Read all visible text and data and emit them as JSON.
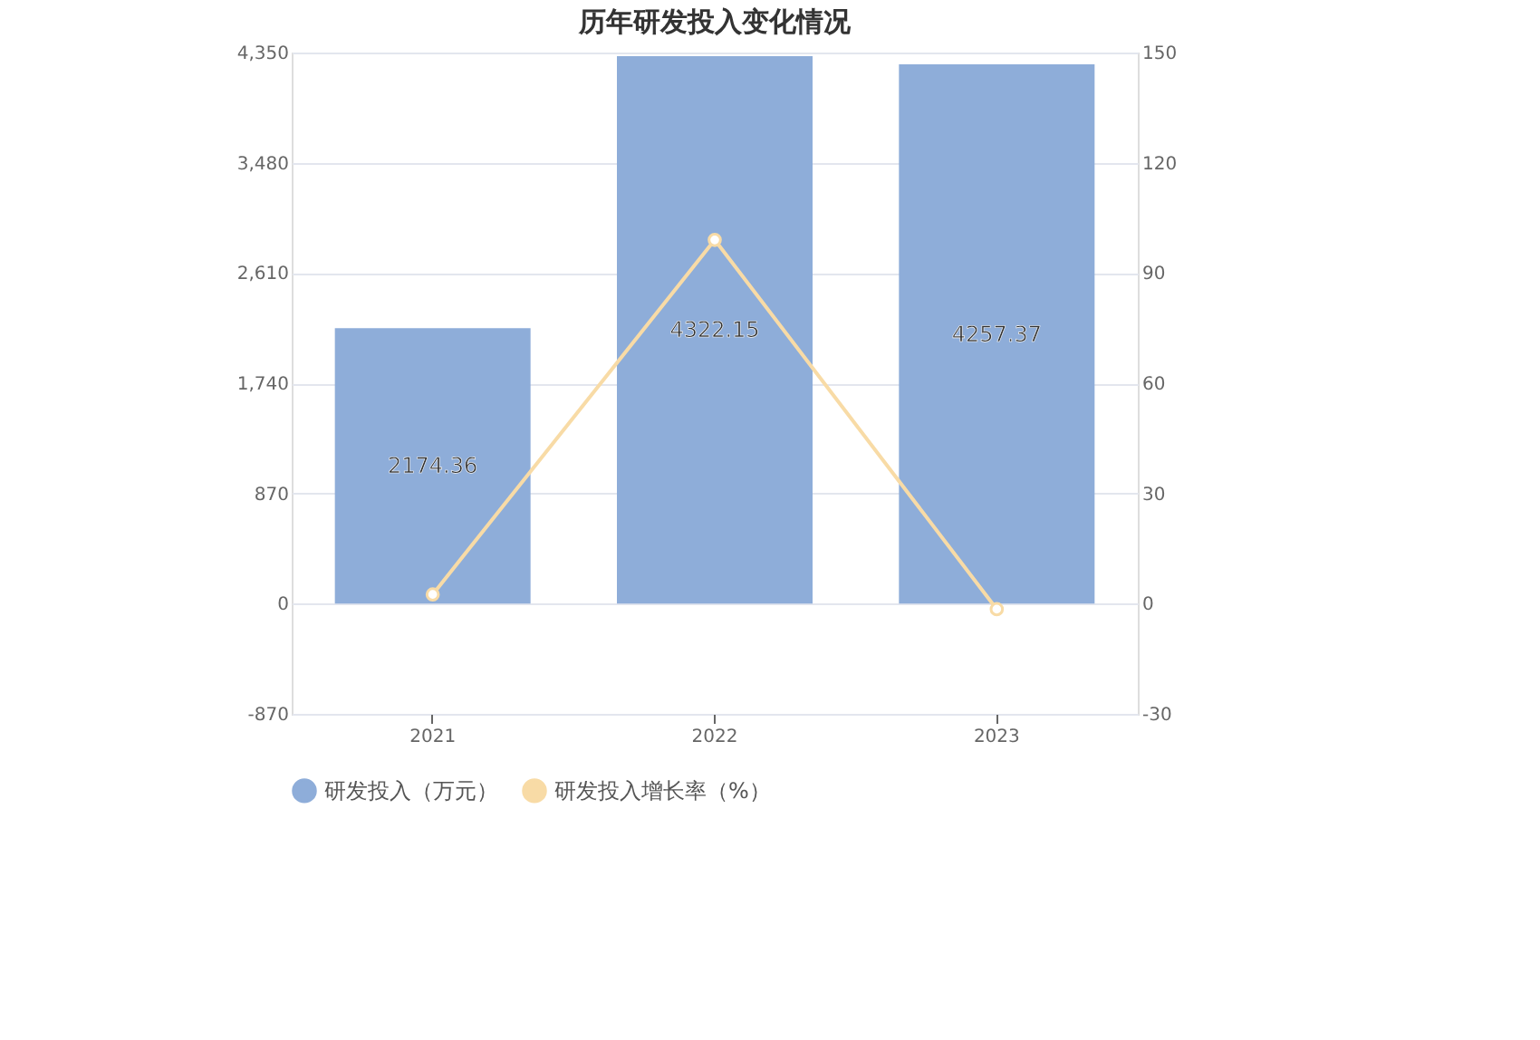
{
  "chart_data": {
    "type": "bar",
    "title": "历年研发投入变化情况",
    "categories": [
      "2021",
      "2022",
      "2023"
    ],
    "series": [
      {
        "name": "研发投入（万元）",
        "color": "#8eadd9",
        "values": [
          2174.36,
          4322.15,
          4257.37
        ],
        "value_labels": [
          "2174.36",
          "4322.15",
          "4257.37"
        ]
      },
      {
        "name": "研发投入增长率（%）",
        "type": "line",
        "axis": "y2",
        "color": "#f8dba6",
        "values": [
          2.5,
          99,
          -1.5
        ]
      }
    ],
    "ylim": [
      -870,
      4350
    ],
    "yticks": [
      {
        "value": -870,
        "label": "-870"
      },
      0,
      870,
      {
        "value": 1740,
        "label": "1,740"
      },
      {
        "value": 2610,
        "label": "2,610"
      },
      {
        "value": 3480,
        "label": "3,480"
      },
      {
        "value": 4350,
        "label": "4,350"
      }
    ],
    "y2lim": [
      -30,
      150
    ],
    "y2ticks": [
      -30,
      0,
      30,
      60,
      90,
      120,
      150
    ],
    "grid": "y",
    "legend": "bottom",
    "marker": "circle",
    "line_style": "solid"
  }
}
